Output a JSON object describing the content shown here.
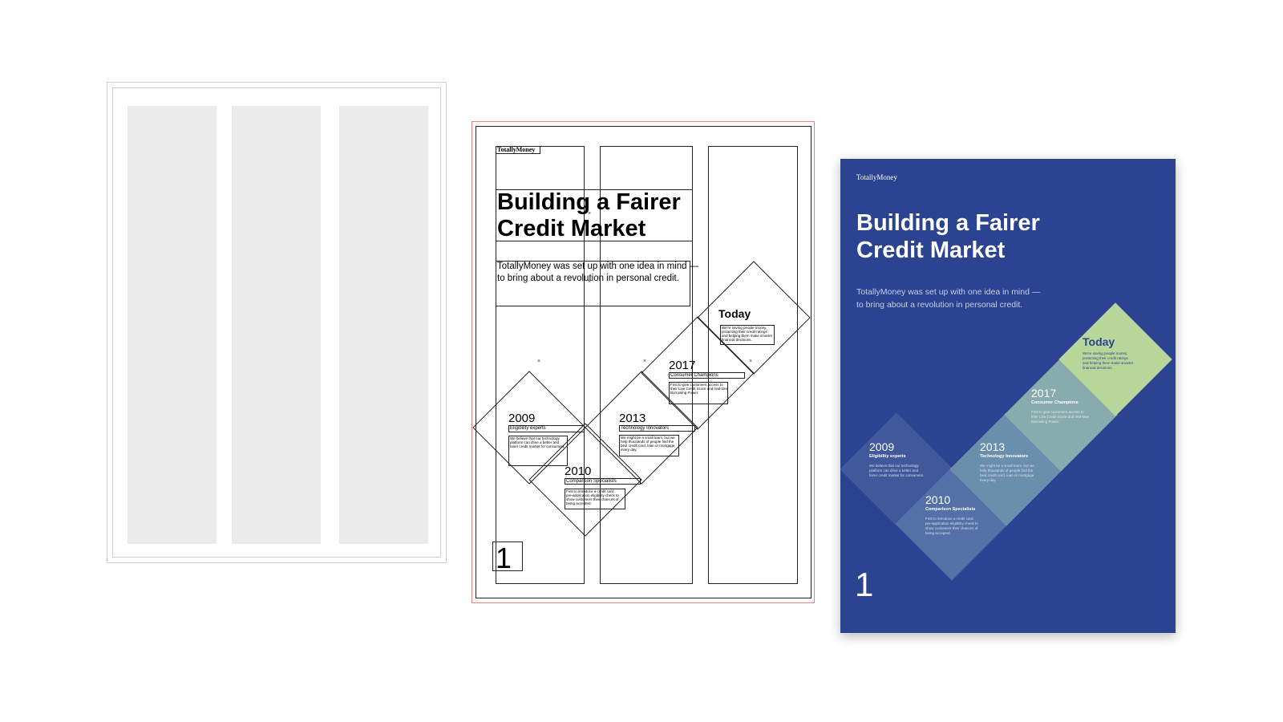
{
  "brand": "TotallyMoney",
  "title_line1": "Building a Fairer",
  "title_line2": "Credit Market",
  "intro_line1": "TotallyMoney was set up with one idea in mind —",
  "intro_line2": "to bring about a revolution in personal credit.",
  "page_number": "1",
  "colors": {
    "poster_bg": "#2b4391",
    "tile_1": "#41589b",
    "tile_2": "#5470a6",
    "tile_3": "#6a8fac",
    "tile_4": "#88abae",
    "tile_today": "#b7d79a",
    "today_text": "#2b4391"
  },
  "milestones": {
    "m2009": {
      "year": "2009",
      "heading": "Eligibility experts",
      "body_l1": "We believe that our technology",
      "body_l2": "platform can drive a better and",
      "body_l3": "fairer credit market for consumers.",
      "body_l4": ""
    },
    "m2010": {
      "year": "2010",
      "heading": "Comparison Specialists",
      "body_l1": "First to introduce a credit card",
      "body_l2": "pre-application eligibility check to",
      "body_l3": "show customers their chances of",
      "body_l4": "being accepted."
    },
    "m2013": {
      "year": "2013",
      "heading": "Technology Innovators",
      "body_l1": "We might be a small team, but we",
      "body_l2": "help thousands of people find the",
      "body_l3": "best credit card, loan or mortgage",
      "body_l4": "every day."
    },
    "m2017": {
      "year": "2017",
      "heading": "Consumer Champions",
      "body_l1": "First to give customers access to",
      "body_l2": "their Live Credit Score and real-time",
      "body_l3": "Borrowing Power.",
      "body_l4": ""
    },
    "today": {
      "year": "Today",
      "heading": "",
      "body_l1": "We're saving people money,",
      "body_l2": "protecting their credit ratings",
      "body_l3": "and helping them make smarter",
      "body_l4": "financial decisions."
    }
  }
}
